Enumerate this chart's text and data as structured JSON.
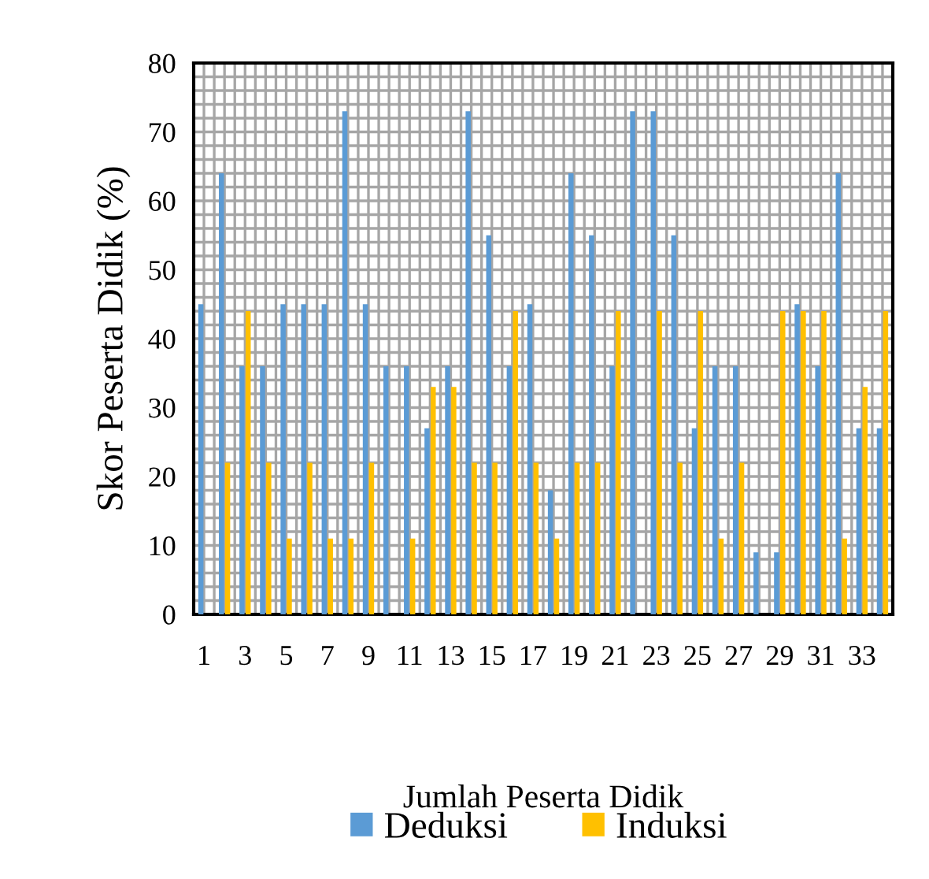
{
  "chart_data": {
    "type": "bar",
    "xlabel": "Jumlah Peserta Didik",
    "ylabel": "Skor Peserta Didik (%)",
    "categories": [
      "1",
      null,
      "3",
      null,
      "5",
      null,
      "7",
      null,
      "9",
      null,
      "11",
      null,
      "13",
      null,
      "15",
      null,
      "17",
      null,
      "19",
      null,
      "21",
      null,
      "23",
      null,
      "25",
      null,
      "27",
      null,
      "29",
      null,
      "31",
      null,
      "33",
      null
    ],
    "series": [
      {
        "name": "Deduksi",
        "color": "#5b9bd5",
        "values": [
          45,
          64,
          36,
          36,
          45,
          45,
          45,
          73,
          45,
          36,
          36,
          27,
          36,
          73,
          55,
          36,
          45,
          18,
          64,
          55,
          36,
          73,
          73,
          55,
          27,
          36,
          36,
          9,
          9,
          45,
          36,
          64,
          27,
          27
        ]
      },
      {
        "name": "Induksi",
        "color": "#ffc000",
        "values": [
          0,
          22,
          44,
          22,
          11,
          22,
          11,
          11,
          22,
          0,
          11,
          33,
          33,
          22,
          22,
          44,
          22,
          11,
          22,
          22,
          44,
          0,
          44,
          22,
          44,
          11,
          22,
          0,
          44,
          44,
          44,
          11,
          33,
          44
        ]
      }
    ],
    "ylim": [
      0,
      80
    ],
    "yticks": [
      0,
      10,
      20,
      30,
      40,
      50,
      60,
      70,
      80
    ],
    "grid": true,
    "legend": "bottom"
  }
}
